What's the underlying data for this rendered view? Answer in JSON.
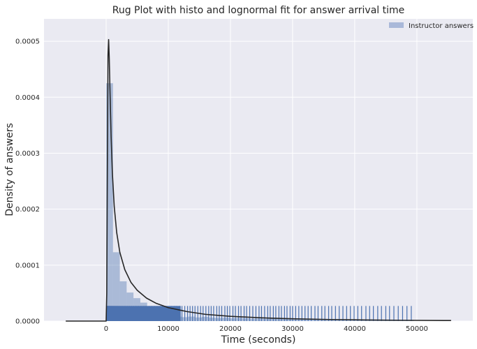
{
  "chart_data": {
    "type": "histogram",
    "title": "Rug Plot with histo and lognormal fit for answer arrival time",
    "xlabel": "Time (seconds)",
    "ylabel": "Density of answers",
    "xlim": [
      -10000,
      59000
    ],
    "ylim": [
      0,
      0.00054
    ],
    "xticks": [
      0,
      10000,
      20000,
      30000,
      40000,
      50000
    ],
    "xtick_labels": [
      "0",
      "10000",
      "20000",
      "30000",
      "40000",
      "50000"
    ],
    "yticks": [
      0,
      0.0001,
      0.0002,
      0.0003,
      0.0004,
      0.0005
    ],
    "ytick_labels": [
      "0.0000",
      "0.0001",
      "0.0002",
      "0.0003",
      "0.0004",
      "0.0005"
    ],
    "grid": true,
    "legend_position": "top-right",
    "legend": [
      {
        "label": "Instructor answers",
        "color": "#a9b8d9"
      }
    ],
    "histogram": {
      "bin_edges": [
        0,
        1100,
        2200,
        3300,
        4400,
        5500,
        6600,
        7700,
        8800,
        9900,
        11000,
        12100,
        13200,
        14300,
        15400,
        16500,
        17600,
        18700,
        19800,
        20900,
        22000,
        23100,
        24200,
        25300,
        26400,
        27500,
        28600,
        29700,
        30800,
        31900,
        33000,
        34100,
        35200,
        36300,
        37400,
        38500,
        39600,
        40700,
        41800,
        42900,
        44000,
        45100,
        46200,
        47300,
        48400,
        49500
      ],
      "values": [
        0.000425,
        0.000123,
        7.1e-05,
        5.1e-05,
        4.1e-05,
        3.3e-05,
        2.4e-05,
        1.5e-05,
        1.2e-05,
        9e-06,
        8e-06,
        7e-06,
        8e-06,
        6.5e-06,
        7.5e-06,
        6e-06,
        5.5e-06,
        6e-06,
        5e-06,
        5.5e-06,
        5e-06,
        4e-06,
        4.5e-06,
        4e-06,
        5e-06,
        4.5e-06,
        4e-06,
        3.5e-06,
        4e-06,
        3.5e-06,
        4e-06,
        3.5e-06,
        3e-06,
        3.5e-06,
        3e-06,
        2.5e-06,
        3e-06,
        2.5e-06,
        3e-06,
        2.5e-06,
        2.5e-06,
        2e-06,
        2.5e-06,
        2e-06,
        2e-06
      ]
    },
    "fit_curve": {
      "name": "lognormal fit",
      "color": "#262626",
      "x": [
        -6500,
        -500,
        0,
        100,
        200,
        300,
        400,
        500,
        600,
        800,
        1000,
        1300,
        1700,
        2200,
        3000,
        4000,
        5000,
        6500,
        8000,
        10000,
        13000,
        16000,
        20000,
        25000,
        30000,
        36000,
        42000,
        48000,
        55500
      ],
      "y": [
        0,
        0,
        0,
        5e-05,
        0.00028,
        0.000475,
        0.000503,
        0.00047,
        0.00042,
        0.00033,
        0.000265,
        0.000205,
        0.000158,
        0.000123,
        9.2e-05,
        6.9e-05,
        5.5e-05,
        4.1e-05,
        3.2e-05,
        2.4e-05,
        1.7e-05,
        1.2e-05,
        8.5e-06,
        5.8e-06,
        4.1e-06,
        2.8e-06,
        2e-06,
        1.4e-06,
        1e-06
      ]
    },
    "rug": {
      "color": "#4c72b0",
      "height_density": 2.7e-05,
      "values": [
        120,
        180,
        250,
        310,
        390,
        450,
        520,
        600,
        680,
        770,
        860,
        950,
        1050,
        1170,
        1290,
        1420,
        1560,
        1710,
        1870,
        2050,
        2240,
        2450,
        2680,
        2920,
        3180,
        3460,
        3760,
        4080,
        4420,
        4790,
        5180,
        5600,
        6050,
        6400,
        6900,
        7300,
        7800,
        8200,
        8700,
        9100,
        9600,
        10100,
        10500,
        11000,
        11350,
        11800,
        12200,
        12650,
        13100,
        13500,
        13900,
        14300,
        14750,
        15200,
        15600,
        16050,
        16500,
        16900,
        17300,
        17800,
        18200,
        18600,
        19100,
        19500,
        19900,
        20400,
        20800,
        21300,
        21700,
        22200,
        22600,
        23100,
        23600,
        24100,
        24600,
        25000,
        25500,
        26000,
        26400,
        26900,
        27300,
        27800,
        28200,
        28700,
        29100,
        29600,
        30000,
        30500,
        31000,
        31500,
        32000,
        32500,
        33000,
        33600,
        34100,
        34700,
        35200,
        35800,
        36300,
        36900,
        37500,
        38100,
        38700,
        39300,
        39900,
        40500,
        41100,
        41800,
        42400,
        43000,
        43700,
        44300,
        45000,
        45600,
        46300,
        47000,
        47700,
        48400,
        49100
      ]
    }
  }
}
